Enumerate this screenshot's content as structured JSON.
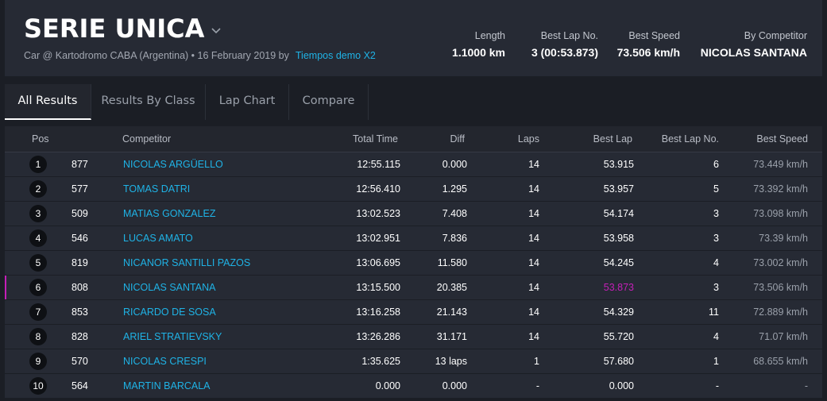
{
  "header": {
    "title": "SERIE UNICA",
    "subtitle": "Car @ Kartodromo CABA (Argentina) • 16 February 2019 by",
    "subtitle_link": "Tiempos demo X2",
    "stats": [
      {
        "label": "Length",
        "value": "1.1000 km"
      },
      {
        "label": "Best Lap No.",
        "value": "3 (00:53.873)"
      },
      {
        "label": "Best Speed",
        "value": "73.506 km/h"
      },
      {
        "label": "By Competitor",
        "value": "NICOLAS SANTANA"
      }
    ]
  },
  "tabs": [
    {
      "label": "All Results",
      "active": true
    },
    {
      "label": "Results By Class",
      "active": false
    },
    {
      "label": "Lap Chart",
      "active": false
    },
    {
      "label": "Compare",
      "active": false
    }
  ],
  "table": {
    "headers": [
      "Pos",
      "Competitor",
      "Total Time",
      "Diff",
      "Laps",
      "Best Lap",
      "Best Lap No.",
      "Best Speed"
    ],
    "rows": [
      {
        "pos": "1",
        "num": "877",
        "name": "NICOLAS ARGÜELLO",
        "total": "12:55.115",
        "diff": "0.000",
        "laps": "14",
        "best_lap": "53.915",
        "best_lap_no": "6",
        "best_speed": "73.449 km/h"
      },
      {
        "pos": "2",
        "num": "577",
        "name": "TOMAS DATRI",
        "total": "12:56.410",
        "diff": "1.295",
        "laps": "14",
        "best_lap": "53.957",
        "best_lap_no": "5",
        "best_speed": "73.392 km/h"
      },
      {
        "pos": "3",
        "num": "509",
        "name": "MATIAS GONZALEZ",
        "total": "13:02.523",
        "diff": "7.408",
        "laps": "14",
        "best_lap": "54.174",
        "best_lap_no": "3",
        "best_speed": "73.098 km/h"
      },
      {
        "pos": "4",
        "num": "546",
        "name": "LUCAS AMATO",
        "total": "13:02.951",
        "diff": "7.836",
        "laps": "14",
        "best_lap": "53.958",
        "best_lap_no": "3",
        "best_speed": "73.39 km/h"
      },
      {
        "pos": "5",
        "num": "819",
        "name": "NICANOR SANTILLI PAZOS",
        "total": "13:06.695",
        "diff": "11.580",
        "laps": "14",
        "best_lap": "54.245",
        "best_lap_no": "4",
        "best_speed": "73.002 km/h"
      },
      {
        "pos": "6",
        "num": "808",
        "name": "NICOLAS SANTANA",
        "total": "13:15.500",
        "diff": "20.385",
        "laps": "14",
        "best_lap": "53.873",
        "best_lap_no": "3",
        "best_speed": "73.506 km/h",
        "overall_best": true
      },
      {
        "pos": "7",
        "num": "853",
        "name": "RICARDO DE SOSA",
        "total": "13:16.258",
        "diff": "21.143",
        "laps": "14",
        "best_lap": "54.329",
        "best_lap_no": "11",
        "best_speed": "72.889 km/h"
      },
      {
        "pos": "8",
        "num": "828",
        "name": "ARIEL STRATIEVSKY",
        "total": "13:26.286",
        "diff": "31.171",
        "laps": "14",
        "best_lap": "55.720",
        "best_lap_no": "4",
        "best_speed": "71.07 km/h"
      },
      {
        "pos": "9",
        "num": "570",
        "name": "NICOLAS CRESPI",
        "total": "1:35.625",
        "diff": "13 laps",
        "laps": "1",
        "best_lap": "57.680",
        "best_lap_no": "1",
        "best_speed": "68.655 km/h"
      },
      {
        "pos": "10",
        "num": "564",
        "name": "MARTIN BARCALA",
        "total": "0.000",
        "diff": "0.000",
        "laps": "-",
        "best_lap": "0.000",
        "best_lap_no": "-",
        "best_speed": "-"
      }
    ]
  },
  "colors": {
    "accent_link": "#1fb3e6",
    "best_lap_highlight": "#c51fb8",
    "header_bg": "#262a34",
    "page_bg": "#1b1e25"
  }
}
